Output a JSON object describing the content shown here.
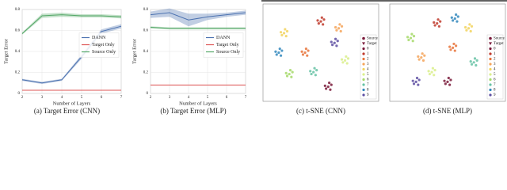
{
  "chart_data": [
    {
      "type": "line",
      "caption": "(a) Target Error (CNN)",
      "xlabel": "Number of Layers",
      "ylabel": "Target Error",
      "x": [
        2,
        3,
        4,
        5,
        6,
        7
      ],
      "xlim": [
        2,
        7
      ],
      "xticks": [
        2,
        3,
        4,
        5,
        6,
        7
      ],
      "ylim": [
        0,
        0.8
      ],
      "yticks": [
        0.0,
        0.2,
        0.4,
        0.6,
        0.8
      ],
      "grid": true,
      "legend": "center right",
      "series": [
        {
          "name": "DANN",
          "color": "#4c72b0",
          "values": [
            0.13,
            0.1,
            0.13,
            0.35,
            0.59,
            0.64
          ],
          "errors": [
            0.01,
            0.01,
            0.01,
            0.02,
            0.02,
            0.02
          ]
        },
        {
          "name": "Target Only",
          "color": "#dd5555",
          "values": [
            0.03,
            0.03,
            0.03,
            0.03,
            0.03,
            0.03
          ],
          "errors": [
            0.003,
            0.003,
            0.003,
            0.003,
            0.003,
            0.003
          ]
        },
        {
          "name": "Source Only",
          "color": "#55a868",
          "values": [
            0.57,
            0.74,
            0.75,
            0.74,
            0.74,
            0.73
          ],
          "errors": [
            0.01,
            0.02,
            0.02,
            0.015,
            0.015,
            0.015
          ]
        }
      ]
    },
    {
      "type": "line",
      "caption": "(b) Target Error (MLP)",
      "xlabel": "Number of Layers",
      "ylabel": "Target Error",
      "x": [
        2,
        3,
        4,
        5,
        6,
        7
      ],
      "xlim": [
        2,
        7
      ],
      "xticks": [
        2,
        3,
        4,
        5,
        6,
        7
      ],
      "ylim": [
        0,
        0.8
      ],
      "yticks": [
        0.0,
        0.2,
        0.4,
        0.6,
        0.8
      ],
      "grid": true,
      "legend": "center right",
      "series": [
        {
          "name": "DANN",
          "color": "#4c72b0",
          "values": [
            0.75,
            0.77,
            0.7,
            0.73,
            0.75,
            0.77
          ],
          "errors": [
            0.03,
            0.04,
            0.06,
            0.03,
            0.02,
            0.02
          ]
        },
        {
          "name": "Target Only",
          "color": "#dd5555",
          "values": [
            0.08,
            0.08,
            0.08,
            0.08,
            0.08,
            0.08
          ],
          "errors": [
            0.003,
            0.003,
            0.003,
            0.003,
            0.003,
            0.003
          ]
        },
        {
          "name": "Source Only",
          "color": "#55a868",
          "values": [
            0.63,
            0.62,
            0.62,
            0.62,
            0.62,
            0.62
          ],
          "errors": [
            0.01,
            0.01,
            0.01,
            0.01,
            0.01,
            0.01
          ]
        }
      ]
    },
    {
      "type": "scatter",
      "caption": "(c) t-SNE (CNN)",
      "xlim": [
        0,
        110
      ],
      "ylim": [
        0,
        100
      ],
      "markers": [
        {
          "name": "Source",
          "shape": "circle",
          "color": "#7a1a3a"
        },
        {
          "name": "Target",
          "shape": "triangle",
          "color": "#7a1a3a"
        }
      ],
      "series": [
        {
          "name": "0",
          "color": "#7a1a3a",
          "x": [
            62,
            65,
            59,
            64,
            60,
            63
          ],
          "y": [
            15,
            17,
            16,
            12,
            13,
            19
          ]
        },
        {
          "name": "1",
          "color": "#c0392b",
          "x": [
            55,
            58,
            52,
            57,
            53,
            56
          ],
          "y": [
            82,
            84,
            83,
            79,
            80,
            86
          ]
        },
        {
          "name": "2",
          "color": "#e8743b",
          "x": [
            40,
            43,
            37,
            42,
            38,
            41
          ],
          "y": [
            50,
            52,
            51,
            47,
            48,
            54
          ]
        },
        {
          "name": "3",
          "color": "#f5a55a",
          "x": [
            72,
            75,
            69,
            74,
            70,
            73
          ],
          "y": [
            75,
            77,
            76,
            72,
            73,
            79
          ]
        },
        {
          "name": "4",
          "color": "#f2d35e",
          "x": [
            20,
            23,
            17,
            22,
            18,
            21
          ],
          "y": [
            70,
            72,
            71,
            67,
            68,
            74
          ]
        },
        {
          "name": "5",
          "color": "#d9ef8b",
          "x": [
            78,
            81,
            75,
            80,
            76,
            79
          ],
          "y": [
            42,
            44,
            43,
            39,
            40,
            46
          ]
        },
        {
          "name": "6",
          "color": "#a6d96a",
          "x": [
            25,
            28,
            22,
            27,
            23,
            26
          ],
          "y": [
            28,
            30,
            29,
            25,
            26,
            32
          ]
        },
        {
          "name": "7",
          "color": "#66c2a5",
          "x": [
            48,
            51,
            45,
            50,
            46,
            49
          ],
          "y": [
            30,
            32,
            31,
            27,
            28,
            34
          ]
        },
        {
          "name": "8",
          "color": "#3288bd",
          "x": [
            15,
            18,
            12,
            17,
            13,
            16
          ],
          "y": [
            50,
            52,
            51,
            47,
            48,
            54
          ]
        },
        {
          "name": "9",
          "color": "#5e4fa2",
          "x": [
            68,
            71,
            65,
            70,
            66,
            69
          ],
          "y": [
            60,
            62,
            61,
            57,
            58,
            64
          ]
        }
      ]
    },
    {
      "type": "scatter",
      "caption": "(d) t-SNE (MLP)",
      "xlim": [
        0,
        110
      ],
      "ylim": [
        0,
        100
      ],
      "markers": [
        {
          "name": "Source",
          "shape": "circle",
          "color": "#7a1a3a"
        },
        {
          "name": "Target",
          "shape": "triangle",
          "color": "#7a1a3a"
        }
      ],
      "series": [
        {
          "name": "0",
          "color": "#7a1a3a",
          "x": [
            55,
            58,
            52,
            57,
            53,
            56
          ],
          "y": [
            20,
            22,
            21,
            17,
            18,
            24
          ]
        },
        {
          "name": "1",
          "color": "#c0392b",
          "x": [
            45,
            48,
            42,
            47,
            43,
            46
          ],
          "y": [
            80,
            82,
            81,
            77,
            78,
            84
          ]
        },
        {
          "name": "2",
          "color": "#e8743b",
          "x": [
            60,
            63,
            57,
            62,
            58,
            61
          ],
          "y": [
            55,
            57,
            56,
            52,
            53,
            59
          ]
        },
        {
          "name": "3",
          "color": "#f5a55a",
          "x": [
            30,
            33,
            27,
            32,
            28,
            31
          ],
          "y": [
            45,
            47,
            46,
            42,
            43,
            49
          ]
        },
        {
          "name": "4",
          "color": "#f2d35e",
          "x": [
            75,
            78,
            72,
            77,
            73,
            76
          ],
          "y": [
            75,
            77,
            76,
            72,
            73,
            79
          ]
        },
        {
          "name": "5",
          "color": "#d9ef8b",
          "x": [
            40,
            43,
            37,
            42,
            38,
            41
          ],
          "y": [
            30,
            32,
            31,
            27,
            28,
            34
          ]
        },
        {
          "name": "6",
          "color": "#a6d96a",
          "x": [
            20,
            23,
            17,
            22,
            18,
            21
          ],
          "y": [
            65,
            67,
            66,
            62,
            63,
            69
          ]
        },
        {
          "name": "7",
          "color": "#66c2a5",
          "x": [
            80,
            83,
            77,
            82,
            78,
            81
          ],
          "y": [
            40,
            42,
            41,
            37,
            38,
            44
          ]
        },
        {
          "name": "8",
          "color": "#3288bd",
          "x": [
            62,
            65,
            59,
            64,
            60,
            63
          ],
          "y": [
            85,
            87,
            86,
            82,
            83,
            89
          ]
        },
        {
          "name": "9",
          "color": "#5e4fa2",
          "x": [
            25,
            28,
            22,
            27,
            23,
            26
          ],
          "y": [
            20,
            22,
            21,
            17,
            18,
            24
          ]
        }
      ]
    }
  ]
}
